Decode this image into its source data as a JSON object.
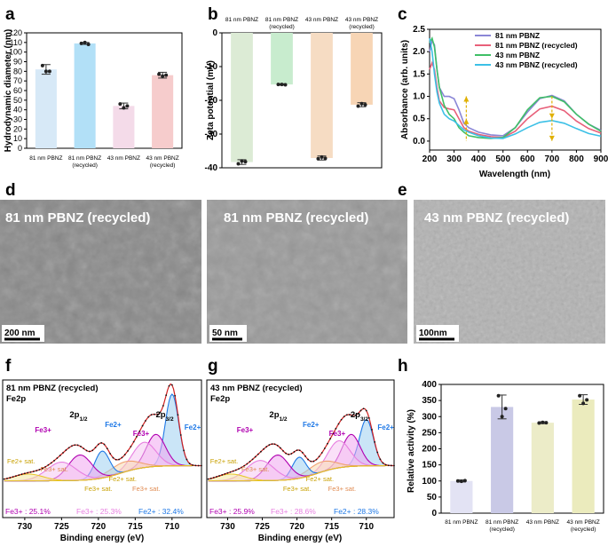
{
  "panel_labels": {
    "a": "a",
    "b": "b",
    "c": "c",
    "d": "d",
    "e": "e",
    "f": "f",
    "g": "g",
    "h": "h"
  },
  "chart_data": [
    {
      "id": "a",
      "type": "bar",
      "ylabel": "Hydrodynamic diameter (nm)",
      "ylim": [
        0,
        120
      ],
      "yticks": [
        0,
        10,
        20,
        30,
        40,
        50,
        60,
        70,
        80,
        90,
        100,
        110,
        120
      ],
      "categories": [
        "81 nm PBNZ",
        "81 nm PBNZ (recycled)",
        "43 nm PBNZ",
        "43 nm PBNZ (recycled)"
      ],
      "category_lines": [
        [
          "81 nm PBNZ"
        ],
        [
          "81 nm PBNZ",
          "(recycled)"
        ],
        [
          "43 nm PBNZ"
        ],
        [
          "43 nm PBNZ",
          "(recycled)"
        ]
      ],
      "values": [
        82,
        109,
        44,
        76
      ],
      "errors": [
        5,
        1,
        3,
        3
      ],
      "colors": [
        "#d7e9f7",
        "#b2e0f7",
        "#f4dbe9",
        "#f6cccc"
      ],
      "points": [
        [
          86,
          80,
          80
        ],
        [
          109,
          110,
          108
        ],
        [
          46,
          42,
          44
        ],
        [
          77,
          75,
          76
        ]
      ]
    },
    {
      "id": "b",
      "type": "bar",
      "ylabel": "Zeta potential (mV)",
      "ylim": [
        -40,
        0
      ],
      "yticks": [
        0,
        -10,
        -20,
        -30,
        -40
      ],
      "categories": [
        "81 nm PBNZ",
        "81 nm PBNZ (recycled)",
        "43 nm PBNZ",
        "43 nm PBNZ (recycled)"
      ],
      "category_lines": [
        [
          "81 nm PBNZ"
        ],
        [
          "81 nm PBNZ",
          "(recycled)"
        ],
        [
          "43 nm PBNZ"
        ],
        [
          "43 nm PBNZ",
          "(recycled)"
        ]
      ],
      "values": [
        -38.3,
        -15.3,
        -37.1,
        -21.3
      ],
      "errors": [
        0.7,
        0.2,
        0.6,
        0.6
      ],
      "colors": [
        "#dcebd5",
        "#c8ecce",
        "#f6dcc3",
        "#f7d5b5"
      ],
      "points": [
        [
          -38.8,
          -38.0,
          -38.2
        ],
        [
          -15.3,
          -15.3,
          -15.4
        ],
        [
          -37.3,
          -36.8,
          -37.2
        ],
        [
          -21.7,
          -21.0,
          -21.3
        ]
      ]
    },
    {
      "id": "c",
      "type": "line",
      "xlabel": "Wavelength (nm)",
      "ylabel": "Absorbance (arb. units)",
      "xlim": [
        200,
        900
      ],
      "ylim": [
        -0.2,
        2.5
      ],
      "xticks": [
        200,
        300,
        400,
        500,
        600,
        700,
        800,
        900
      ],
      "yticks": [
        0.0,
        0.5,
        1.0,
        1.5,
        2.0,
        2.5
      ],
      "yticklabels": [
        "0.0",
        "0.5",
        "1.0",
        "1.5",
        "2.0",
        "2.5"
      ],
      "series": [
        {
          "name": "81 nm PBNZ",
          "color": "#8a86d6",
          "x": [
            200,
            210,
            220,
            230,
            240,
            260,
            280,
            300,
            320,
            340,
            360,
            400,
            450,
            500,
            550,
            600,
            650,
            700,
            750,
            800,
            850,
            900
          ],
          "y": [
            2.0,
            2.25,
            2.15,
            1.6,
            1.2,
            1.0,
            1.0,
            0.95,
            0.7,
            0.4,
            0.3,
            0.2,
            0.14,
            0.12,
            0.3,
            0.65,
            0.95,
            1.02,
            0.9,
            0.6,
            0.38,
            0.24
          ]
        },
        {
          "name": "81 nm PBNZ (recycled)",
          "color": "#e8607a",
          "x": [
            200,
            210,
            220,
            230,
            240,
            260,
            280,
            300,
            320,
            340,
            360,
            400,
            450,
            500,
            550,
            600,
            650,
            700,
            750,
            800,
            850,
            900
          ],
          "y": [
            1.6,
            1.75,
            1.6,
            1.2,
            0.9,
            0.75,
            0.72,
            0.7,
            0.5,
            0.3,
            0.22,
            0.15,
            0.1,
            0.08,
            0.22,
            0.5,
            0.72,
            0.78,
            0.68,
            0.45,
            0.28,
            0.18
          ]
        },
        {
          "name": "43 nm PBNZ",
          "color": "#3fbf66",
          "x": [
            200,
            210,
            220,
            230,
            240,
            260,
            280,
            300,
            320,
            340,
            360,
            400,
            450,
            500,
            550,
            600,
            650,
            700,
            750,
            800,
            850,
            900
          ],
          "y": [
            2.2,
            2.3,
            2.1,
            1.6,
            1.2,
            0.8,
            0.6,
            0.5,
            0.3,
            0.2,
            0.12,
            0.08,
            0.06,
            0.08,
            0.3,
            0.7,
            0.97,
            1.0,
            0.88,
            0.6,
            0.38,
            0.22
          ]
        },
        {
          "name": "43 nm PBNZ (recycled)",
          "color": "#3cc0e6",
          "x": [
            200,
            210,
            220,
            230,
            240,
            260,
            280,
            300,
            320,
            340,
            360,
            400,
            450,
            500,
            550,
            600,
            650,
            700,
            750,
            800,
            850,
            900
          ],
          "y": [
            2.3,
            2.0,
            1.5,
            1.1,
            0.85,
            0.6,
            0.5,
            0.45,
            0.35,
            0.25,
            0.2,
            0.12,
            0.07,
            0.06,
            0.16,
            0.3,
            0.42,
            0.46,
            0.4,
            0.28,
            0.17,
            0.11
          ]
        }
      ],
      "arrows": [
        {
          "x": 350,
          "direction": "up"
        },
        {
          "x": 700,
          "direction": "down"
        }
      ]
    },
    {
      "id": "f",
      "type": "line",
      "title": "81 nm PBNZ (recycled)",
      "subtitle": "Fe2p",
      "xlabel": "Binding energy (eV)",
      "xlim": [
        733,
        706
      ],
      "xticks": [
        730,
        725,
        720,
        715,
        710
      ],
      "peak_labels": [
        {
          "text": "2p1/2",
          "main": "2p",
          "sub": "1/2"
        },
        {
          "text": "2p3/2",
          "main": "2p",
          "sub": "3/2"
        }
      ],
      "annotations": [
        "Fe3+",
        "Fe2+",
        "Fe3+",
        "Fe2+",
        "Fe2+ sat.",
        "Fe3+ sat.",
        "Fe3+ sat.",
        "Fe2+ sat.",
        "Fe3+ sat."
      ],
      "ratios": {
        "fe3": "Fe3+ : 25.1%",
        "mid": "Fe3+ : 25.3%",
        "fe2": "Fe2+ : 32.4%"
      },
      "ratio_values": {
        "fe3": 25.1,
        "mid": 25.3,
        "fe2": 32.4
      }
    },
    {
      "id": "g",
      "type": "line",
      "title": "43 nm PBNZ (recycled)",
      "subtitle": "Fe2p",
      "xlabel": "Binding energy (eV)",
      "xlim": [
        733,
        706
      ],
      "xticks": [
        730,
        725,
        720,
        715,
        710
      ],
      "peak_labels": [
        {
          "text": "2p1/2",
          "main": "2p",
          "sub": "1/2"
        },
        {
          "text": "2p3/2",
          "main": "2p",
          "sub": "3/2"
        }
      ],
      "annotations": [
        "Fe3+",
        "Fe2+",
        "Fe3+",
        "Fe2+",
        "Fe2+ sat.",
        "Fe3+ sat.",
        "Fe3+ sat.",
        "Fe2+ sat.",
        "Fe3+ sat."
      ],
      "ratios": {
        "fe3": "Fe3+ : 25.9%",
        "mid": "Fe3+ : 28.6%",
        "fe2": "Fe2+ : 28.3%"
      },
      "ratio_values": {
        "fe3": 25.9,
        "mid": 28.6,
        "fe2": 28.3
      }
    },
    {
      "id": "h",
      "type": "bar",
      "ylabel": "Relative activity (%)",
      "ylim": [
        0,
        400
      ],
      "yticks": [
        0,
        50,
        100,
        150,
        200,
        250,
        300,
        350,
        400
      ],
      "categories": [
        "81 nm PBNZ",
        "81 nm PBNZ (recycled)",
        "43 nm PBNZ",
        "43 nm PBNZ (recycled)"
      ],
      "category_lines": [
        [
          "81 nm PBNZ"
        ],
        [
          "81 nm PBNZ",
          "(recycled)"
        ],
        [
          "43 nm PBNZ"
        ],
        [
          "43 nm PBNZ",
          "(recycled)"
        ]
      ],
      "values": [
        100,
        330,
        281,
        353
      ],
      "errors": [
        3,
        37,
        3,
        15
      ],
      "colors": [
        "#e3e3f4",
        "#c9c9e6",
        "#ececc8",
        "#ebebbd"
      ],
      "points": [
        [
          100,
          99,
          101
        ],
        [
          365,
          300,
          325
        ],
        [
          280,
          282,
          281
        ],
        [
          365,
          341,
          352
        ]
      ]
    }
  ],
  "tem": {
    "d1": {
      "label": "81 nm PBNZ (recycled)",
      "scale": "200 nm"
    },
    "d2": {
      "label": "81 nm PBNZ (recycled)",
      "scale": "50 nm"
    },
    "e": {
      "label": "43 nm PBNZ (recycled)",
      "scale": "100nm"
    }
  },
  "colors": {
    "fe3": "#b000b0",
    "fe2": "#1e78e6",
    "mid": "#e77fe0",
    "sat": "#e8c832",
    "sat_mid": "#f0a070",
    "bluepeak": "#6ab4e8"
  }
}
